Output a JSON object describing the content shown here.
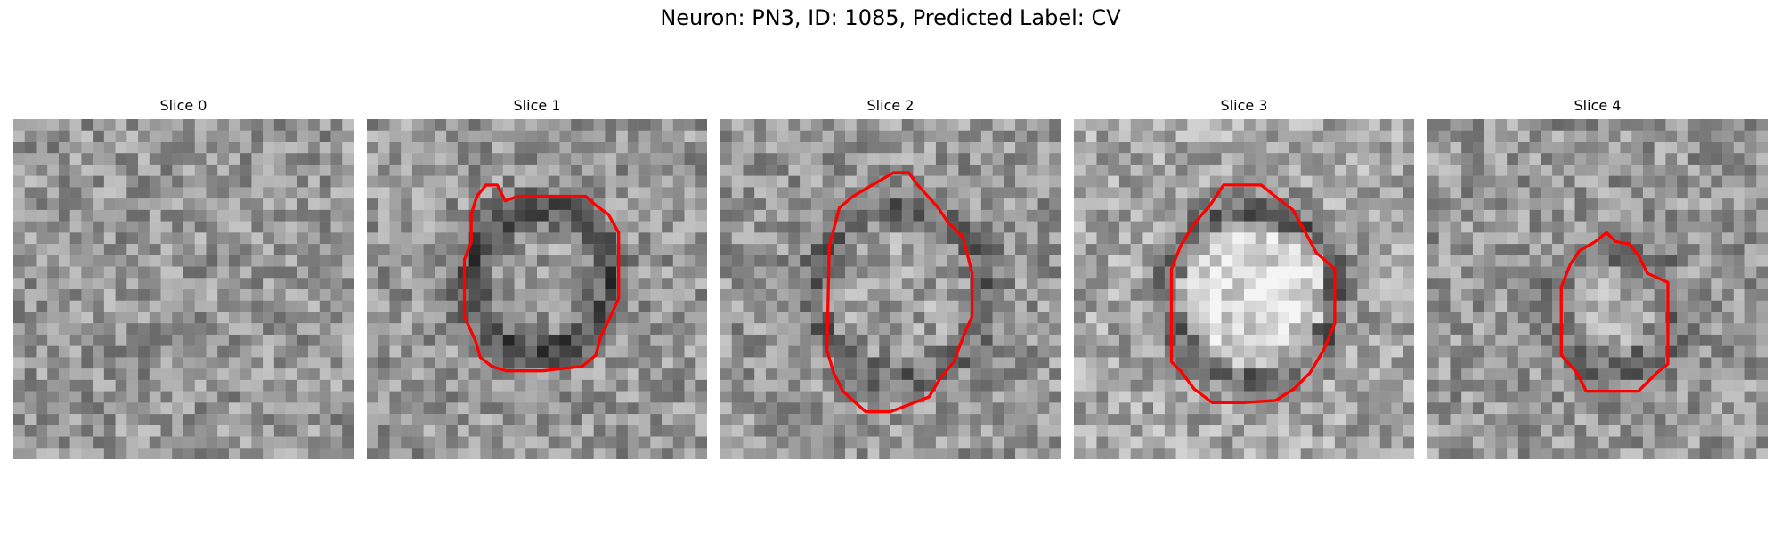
{
  "figure": {
    "title": "Neuron: PN3, ID: 1085, Predicted Label: CV"
  },
  "slices": [
    {
      "label": "Slice 0",
      "has_contour": false
    },
    {
      "label": "Slice 1",
      "has_contour": true
    },
    {
      "label": "Slice 2",
      "has_contour": true
    },
    {
      "label": "Slice 3",
      "has_contour": true
    },
    {
      "label": "Slice 4",
      "has_contour": true
    }
  ],
  "colors": {
    "contour": "#ff0000",
    "background": "#ffffff"
  }
}
